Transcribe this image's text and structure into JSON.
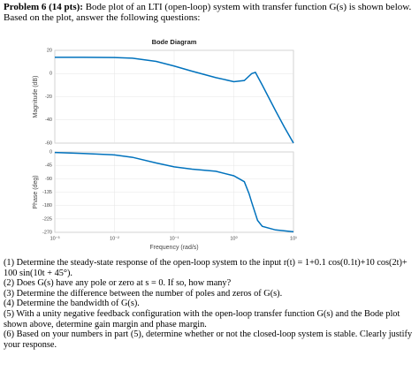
{
  "header": {
    "problem": "Problem 6 (14 pts):",
    "text": "Bode plot of an LTI (open-loop) system with transfer function G(s) is shown below. Based on the plot, answer the following questions:"
  },
  "chart_data": [
    {
      "type": "line",
      "title": "Bode Diagram",
      "y_label": "Magnitude (dB)",
      "xscale": "log",
      "grid": true,
      "color": "#0072bd",
      "xlim": [
        0.001,
        10
      ],
      "ylim": [
        -60,
        20
      ],
      "yticks": [
        20,
        0,
        -20,
        -40,
        -60
      ],
      "x": [
        0.001,
        0.003,
        0.01,
        0.02,
        0.05,
        0.1,
        0.2,
        0.5,
        1,
        1.5,
        2,
        2.3,
        3,
        5,
        7,
        10
      ],
      "values": [
        14,
        14,
        13.8,
        13.2,
        10.5,
        6.5,
        2,
        -3.5,
        -7,
        -6,
        0,
        1,
        -10,
        -32,
        -46,
        -60
      ]
    },
    {
      "type": "line",
      "y_label": "Phase (deg)",
      "x_label": "Frequency  (rad/s)",
      "xscale": "log",
      "grid": true,
      "color": "#0072bd",
      "xlim": [
        0.001,
        10
      ],
      "ylim": [
        -270,
        0
      ],
      "yticks": [
        0,
        -45,
        -90,
        -135,
        -180,
        -225,
        -270
      ],
      "xticks": [
        {
          "value": 0.001,
          "label": "10⁻³"
        },
        {
          "value": 0.01,
          "label": "10⁻²"
        },
        {
          "value": 0.1,
          "label": "10⁻¹"
        },
        {
          "value": 1,
          "label": "10⁰"
        },
        {
          "value": 10,
          "label": "10¹"
        }
      ],
      "x": [
        0.001,
        0.003,
        0.01,
        0.02,
        0.05,
        0.1,
        0.2,
        0.5,
        1,
        1.5,
        1.8,
        2,
        2.5,
        3,
        5,
        10
      ],
      "values": [
        -2,
        -5,
        -10,
        -18,
        -37,
        -50,
        -58,
        -65,
        -80,
        -100,
        -140,
        -170,
        -230,
        -250,
        -262,
        -268
      ]
    }
  ],
  "questions": [
    "(1) Determine the steady-state response of the open-loop system to the input r(t) = 1+0.1 cos(0.1t)+10 cos(2t)+ 100 sin(10t + 45°).",
    "(2) Does G(s) have any pole or zero at s = 0. If so, how many?",
    "(3) Determine the difference between the number of poles and zeros of G(s).",
    "(4) Determine the bandwidth of G(s).",
    "(5) With a unity negative feedback configuration with the open-loop transfer function G(s) and the Bode plot shown above, determine gain margin and phase margin.",
    "(6) Based on your numbers in part (5), determine whether or not the closed-loop system is stable. Clearly justify your response."
  ]
}
